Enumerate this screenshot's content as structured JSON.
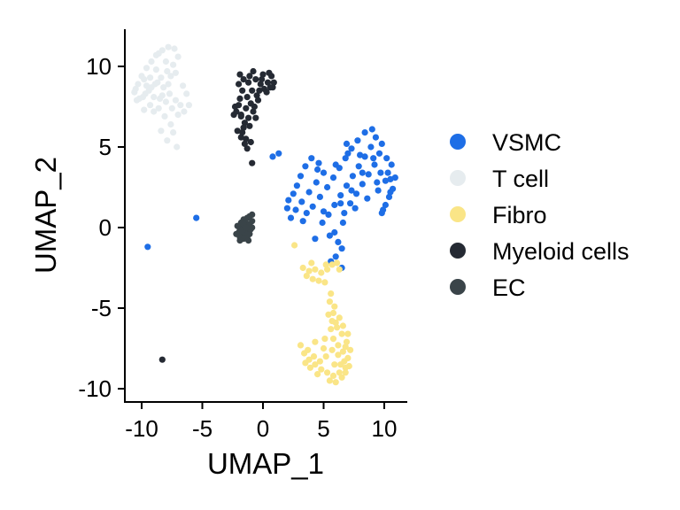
{
  "chart_data": {
    "type": "scatter",
    "title": "",
    "xlabel": "UMAP_1",
    "ylabel": "UMAP_2",
    "xlim": [
      -11.5,
      12
    ],
    "ylim": [
      -10.5,
      12.3
    ],
    "x_ticks": [
      -10,
      -5,
      0,
      5,
      10
    ],
    "x_tick_labels": [
      "-10",
      "-5",
      "0",
      "5",
      "10"
    ],
    "y_ticks": [
      -10,
      -5,
      0,
      5,
      10
    ],
    "y_tick_labels": [
      "-10",
      "-5",
      "0",
      "5",
      "10"
    ],
    "grid": false,
    "legend_position": "right",
    "series": [
      {
        "name": "VSMC",
        "color": "#1E6EE6",
        "points": [
          [
            -9.5,
            -1.2
          ],
          [
            -5.5,
            0.6
          ],
          [
            0.8,
            4.4
          ],
          [
            1.3,
            4.6
          ],
          [
            2.3,
            0.6
          ],
          [
            2.0,
            1.2
          ],
          [
            2.1,
            1.7
          ],
          [
            2.5,
            2.1
          ],
          [
            2.8,
            2.6
          ],
          [
            3.1,
            3.2
          ],
          [
            3.5,
            3.8
          ],
          [
            4.0,
            4.3
          ],
          [
            4.6,
            4.0
          ],
          [
            5.0,
            3.4
          ],
          [
            4.4,
            2.8
          ],
          [
            3.8,
            2.2
          ],
          [
            3.2,
            1.6
          ],
          [
            4.1,
            1.3
          ],
          [
            4.7,
            1.9
          ],
          [
            5.3,
            2.5
          ],
          [
            5.8,
            3.1
          ],
          [
            6.3,
            3.7
          ],
          [
            6.8,
            4.3
          ],
          [
            7.3,
            4.9
          ],
          [
            7.8,
            5.4
          ],
          [
            8.4,
            5.9
          ],
          [
            9.0,
            6.1
          ],
          [
            9.3,
            5.6
          ],
          [
            8.9,
            5.0
          ],
          [
            8.4,
            4.4
          ],
          [
            7.9,
            3.8
          ],
          [
            7.4,
            3.2
          ],
          [
            6.9,
            2.6
          ],
          [
            6.4,
            2.0
          ],
          [
            5.9,
            1.4
          ],
          [
            5.4,
            0.8
          ],
          [
            4.9,
            0.3
          ],
          [
            5.5,
            -0.5
          ],
          [
            6.2,
            -0.9
          ],
          [
            6.5,
            -1.3
          ],
          [
            6.5,
            -2.5
          ],
          [
            5.6,
            -2.1
          ],
          [
            6.0,
            -1.8
          ],
          [
            6.7,
            0.9
          ],
          [
            7.2,
            1.5
          ],
          [
            7.7,
            2.1
          ],
          [
            8.2,
            2.7
          ],
          [
            8.7,
            3.3
          ],
          [
            9.2,
            3.9
          ],
          [
            9.6,
            4.6
          ],
          [
            9.8,
            5.2
          ],
          [
            10.1,
            2.9
          ],
          [
            10.3,
            3.4
          ],
          [
            10.6,
            3.9
          ],
          [
            10.7,
            2.4
          ],
          [
            10.4,
            1.9
          ],
          [
            10.1,
            1.4
          ],
          [
            9.8,
            0.9
          ],
          [
            9.9,
            1.1
          ],
          [
            10.5,
            2.2
          ],
          [
            10.9,
            3.1
          ],
          [
            10.5,
            3.0
          ],
          [
            9.5,
            2.3
          ],
          [
            8.6,
            1.8
          ],
          [
            7.6,
            1.2
          ],
          [
            6.6,
            0.3
          ],
          [
            5.9,
            -0.3
          ],
          [
            4.3,
            -0.7
          ],
          [
            3.3,
            0.4
          ],
          [
            4.5,
            3.6
          ],
          [
            6.0,
            3.9
          ],
          [
            7.0,
            4.6
          ],
          [
            8.0,
            4.5
          ],
          [
            8.2,
            3.4
          ],
          [
            7.3,
            2.3
          ],
          [
            6.4,
            1.5
          ],
          [
            5.0,
            1.0
          ],
          [
            3.6,
            0.9
          ],
          [
            2.7,
            1.1
          ],
          [
            6.9,
            5.2
          ],
          [
            9.1,
            4.3
          ],
          [
            9.4,
            2.8
          ],
          [
            10.2,
            4.3
          ],
          [
            9.7,
            3.4
          ]
        ]
      },
      {
        "name": "T cell",
        "color": "#E6ECEF",
        "points": [
          [
            -10.6,
            8.4
          ],
          [
            -10.3,
            8.9
          ],
          [
            -10.0,
            9.4
          ],
          [
            -9.6,
            9.9
          ],
          [
            -9.2,
            10.3
          ],
          [
            -8.8,
            10.7
          ],
          [
            -8.3,
            11.0
          ],
          [
            -7.8,
            11.2
          ],
          [
            -7.3,
            11.1
          ],
          [
            -7.0,
            10.6
          ],
          [
            -7.4,
            10.1
          ],
          [
            -7.9,
            9.7
          ],
          [
            -8.4,
            9.3
          ],
          [
            -8.9,
            8.9
          ],
          [
            -9.4,
            8.5
          ],
          [
            -9.9,
            8.1
          ],
          [
            -10.4,
            7.9
          ],
          [
            -10.2,
            8.0
          ],
          [
            -9.7,
            8.3
          ],
          [
            -9.2,
            8.7
          ],
          [
            -8.7,
            9.0
          ],
          [
            -8.2,
            8.7
          ],
          [
            -7.7,
            8.3
          ],
          [
            -7.2,
            7.9
          ],
          [
            -6.8,
            7.6
          ],
          [
            -6.5,
            7.2
          ],
          [
            -7.0,
            7.0
          ],
          [
            -7.5,
            7.4
          ],
          [
            -8.0,
            7.8
          ],
          [
            -8.5,
            8.0
          ],
          [
            -9.0,
            8.1
          ],
          [
            -8.6,
            7.4
          ],
          [
            -8.1,
            6.9
          ],
          [
            -7.6,
            6.4
          ],
          [
            -7.4,
            5.9
          ],
          [
            -7.9,
            5.4
          ],
          [
            -7.1,
            5.0
          ],
          [
            -8.4,
            6.0
          ],
          [
            -9.3,
            7.6
          ],
          [
            -9.8,
            7.3
          ],
          [
            -8.0,
            10.3
          ],
          [
            -7.6,
            9.4
          ],
          [
            -8.8,
            9.8
          ],
          [
            -9.3,
            9.3
          ],
          [
            -9.0,
            7.2
          ],
          [
            -6.3,
            8.3
          ],
          [
            -6.1,
            7.6
          ],
          [
            -6.6,
            8.8
          ],
          [
            -7.2,
            9.6
          ],
          [
            -8.6,
            10.8
          ],
          [
            -9.8,
            9.2
          ],
          [
            -10.5,
            8.6
          ],
          [
            -8.3,
            8.2
          ],
          [
            -7.8,
            8.9
          ],
          [
            -9.6,
            8.8
          ]
        ]
      },
      {
        "name": "Fibro",
        "color": "#FAE587",
        "points": [
          [
            2.6,
            -1.1
          ],
          [
            3.3,
            -2.5
          ],
          [
            3.8,
            -2.7
          ],
          [
            4.3,
            -2.6
          ],
          [
            4.8,
            -2.8
          ],
          [
            5.3,
            -2.6
          ],
          [
            5.7,
            -2.3
          ],
          [
            6.3,
            -2.6
          ],
          [
            3.6,
            -3.0
          ],
          [
            4.1,
            -3.2
          ],
          [
            4.6,
            -3.3
          ],
          [
            5.1,
            -3.4
          ],
          [
            5.6,
            -4.1
          ],
          [
            5.5,
            -4.6
          ],
          [
            5.8,
            -5.3
          ],
          [
            6.0,
            -5.9
          ],
          [
            5.6,
            -6.3
          ],
          [
            5.8,
            -6.9
          ],
          [
            6.2,
            -7.3
          ],
          [
            6.6,
            -7.7
          ],
          [
            7.0,
            -8.1
          ],
          [
            6.8,
            -8.7
          ],
          [
            6.3,
            -9.0
          ],
          [
            5.8,
            -9.2
          ],
          [
            5.3,
            -9.0
          ],
          [
            4.8,
            -8.8
          ],
          [
            4.3,
            -8.5
          ],
          [
            3.8,
            -8.2
          ],
          [
            3.4,
            -7.8
          ],
          [
            3.1,
            -7.3
          ],
          [
            3.7,
            -7.6
          ],
          [
            4.2,
            -8.0
          ],
          [
            4.7,
            -8.3
          ],
          [
            5.2,
            -8.0
          ],
          [
            5.7,
            -7.6
          ],
          [
            6.2,
            -7.9
          ],
          [
            6.7,
            -8.3
          ],
          [
            7.1,
            -8.6
          ],
          [
            7.2,
            -7.6
          ],
          [
            6.9,
            -7.1
          ],
          [
            6.5,
            -6.6
          ],
          [
            6.1,
            -6.2
          ],
          [
            5.7,
            -5.8
          ],
          [
            5.4,
            -5.4
          ],
          [
            5.9,
            -4.9
          ],
          [
            6.3,
            -5.6
          ],
          [
            6.6,
            -6.1
          ],
          [
            7.0,
            -6.6
          ],
          [
            5.5,
            -9.5
          ],
          [
            6.0,
            -9.6
          ],
          [
            6.5,
            -9.3
          ],
          [
            4.5,
            -9.1
          ],
          [
            3.9,
            -8.7
          ],
          [
            5.0,
            -7.5
          ],
          [
            6.4,
            -8.5
          ],
          [
            5.1,
            -6.9
          ],
          [
            4.3,
            -7.1
          ],
          [
            3.5,
            -8.4
          ],
          [
            6.8,
            -9.0
          ],
          [
            5.9,
            -8.5
          ],
          [
            6.1,
            -2.2
          ],
          [
            5.2,
            -2.3
          ],
          [
            4.0,
            -2.2
          ],
          [
            6.8,
            -7.4
          ]
        ]
      },
      {
        "name": "Myeloid cells",
        "color": "#252A33",
        "points": [
          [
            -8.3,
            -8.2
          ],
          [
            -0.9,
            4.0
          ],
          [
            -2.0,
            7.6
          ],
          [
            -2.2,
            7.2
          ],
          [
            -1.8,
            6.9
          ],
          [
            -1.5,
            6.5
          ],
          [
            -2.1,
            6.0
          ],
          [
            -1.8,
            5.6
          ],
          [
            -1.5,
            5.2
          ],
          [
            -1.3,
            4.9
          ],
          [
            -1.0,
            5.3
          ],
          [
            -1.6,
            6.2
          ],
          [
            -1.2,
            6.8
          ],
          [
            -0.8,
            7.2
          ],
          [
            -1.0,
            7.7
          ],
          [
            -1.3,
            8.1
          ],
          [
            -1.7,
            8.5
          ],
          [
            -2.0,
            8.9
          ],
          [
            -1.6,
            9.2
          ],
          [
            -1.1,
            9.4
          ],
          [
            -0.6,
            9.2
          ],
          [
            -0.2,
            8.9
          ],
          [
            0.1,
            8.6
          ],
          [
            0.4,
            9.0
          ],
          [
            0.7,
            9.4
          ],
          [
            0.9,
            9.0
          ],
          [
            0.6,
            8.7
          ],
          [
            -0.4,
            7.9
          ],
          [
            -0.7,
            7.5
          ],
          [
            -0.9,
            8.5
          ],
          [
            -0.5,
            8.2
          ],
          [
            0.0,
            9.5
          ],
          [
            0.5,
            9.6
          ],
          [
            0.8,
            8.7
          ],
          [
            -1.9,
            8.0
          ],
          [
            -2.3,
            7.5
          ],
          [
            -1.4,
            7.4
          ],
          [
            -0.3,
            8.5
          ],
          [
            -1.2,
            9.0
          ],
          [
            -0.8,
            9.7
          ],
          [
            -1.7,
            5.9
          ],
          [
            -1.1,
            6.3
          ],
          [
            -1.4,
            5.5
          ],
          [
            -2.4,
            7.0
          ],
          [
            -1.9,
            9.5
          ],
          [
            -0.1,
            9.2
          ],
          [
            0.3,
            8.4
          ],
          [
            -0.6,
            6.8
          ],
          [
            -1.8,
            7.0
          ]
        ]
      },
      {
        "name": "EC",
        "color": "#3A4449",
        "points": [
          [
            -1.6,
            0.5
          ],
          [
            -1.3,
            0.6
          ],
          [
            -1.1,
            0.7
          ],
          [
            -0.9,
            0.8
          ],
          [
            -1.4,
            0.3
          ],
          [
            -1.1,
            0.2
          ],
          [
            -0.9,
            0.4
          ],
          [
            -1.7,
            0.1
          ],
          [
            -1.9,
            -0.1
          ],
          [
            -1.5,
            -0.1
          ],
          [
            -1.2,
            -0.2
          ],
          [
            -0.9,
            0.0
          ],
          [
            -2.0,
            -0.3
          ],
          [
            -1.7,
            -0.4
          ],
          [
            -1.4,
            -0.5
          ],
          [
            -1.1,
            -0.4
          ],
          [
            -1.9,
            -0.6
          ],
          [
            -1.6,
            -0.7
          ],
          [
            -1.3,
            -0.6
          ],
          [
            -2.1,
            0.1
          ],
          [
            -1.3,
            0.1
          ],
          [
            -1.0,
            -0.1
          ],
          [
            -1.8,
            0.3
          ],
          [
            -1.5,
            -0.3
          ],
          [
            -2.2,
            -0.4
          ],
          [
            -1.2,
            -0.8
          ],
          [
            -1.9,
            -0.8
          ],
          [
            -1.6,
            0.2
          ],
          [
            -1.7,
            -0.2
          ],
          [
            -1.4,
            0.0
          ]
        ]
      }
    ]
  }
}
